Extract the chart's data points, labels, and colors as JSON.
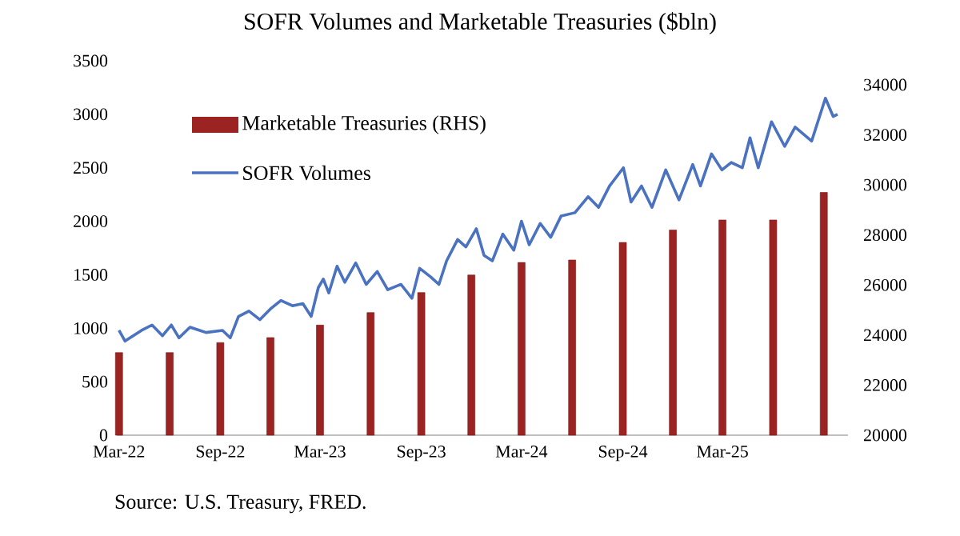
{
  "chart_data": {
    "type": "line",
    "title": "SOFR Volumes and Marketable Treasuries ($bln)",
    "annotations": [
      "Source: U.S. Treasury, FRED."
    ],
    "legend": "top left",
    "xlim": [
      "2022-02-25",
      "2025-10-15"
    ],
    "xticks": [
      {
        "value": "2022-03-01",
        "label": "Mar-22"
      },
      {
        "value": "2022-09-01",
        "label": "Sep-22"
      },
      {
        "value": "2023-03-01",
        "label": "Mar-23"
      },
      {
        "value": "2023-09-01",
        "label": "Sep-23"
      },
      {
        "value": "2024-03-01",
        "label": "Mar-24"
      },
      {
        "value": "2024-09-01",
        "label": "Sep-24"
      },
      {
        "value": "2025-03-01",
        "label": "Mar-25"
      }
    ],
    "ylim": [
      0,
      3500
    ],
    "yticks": [
      0,
      500,
      1000,
      1500,
      2000,
      2500,
      3000,
      3500
    ],
    "y2lim": [
      20000,
      34000
    ],
    "y2ticks": [
      20000,
      22000,
      24000,
      26000,
      28000,
      30000,
      32000,
      34000
    ],
    "series": [
      {
        "name": "Marketable Treasuries (RHS)",
        "type": "bar",
        "axis": "y2",
        "color": "#9b2423",
        "x": [
          "2022-03-01",
          "2022-06-01",
          "2022-09-01",
          "2022-12-01",
          "2023-03-01",
          "2023-06-01",
          "2023-09-01",
          "2023-12-01",
          "2024-03-01",
          "2024-06-01",
          "2024-09-01",
          "2024-12-01",
          "2025-03-01",
          "2025-06-01",
          "2025-09-01"
        ],
        "values": [
          23300,
          23300,
          23700,
          23900,
          24400,
          24900,
          25700,
          26400,
          26900,
          27000,
          27700,
          28200,
          28600,
          28600,
          29700
        ]
      },
      {
        "name": "SOFR Volumes",
        "color": "#4a72c0",
        "x": [
          "2022-03-01",
          "2022-03-12",
          "2022-04-11",
          "2022-04-30",
          "2022-05-19",
          "2022-06-04",
          "2022-06-18",
          "2022-07-08",
          "2022-08-06",
          "2022-09-05",
          "2022-09-19",
          "2022-10-04",
          "2022-10-23",
          "2022-11-12",
          "2022-12-01",
          "2022-12-20",
          "2023-01-10",
          "2023-01-29",
          "2023-02-13",
          "2023-02-26",
          "2023-03-07",
          "2023-03-17",
          "2023-04-01",
          "2023-04-15",
          "2023-05-05",
          "2023-05-24",
          "2023-06-13",
          "2023-07-02",
          "2023-07-26",
          "2023-08-15",
          "2023-08-29",
          "2023-09-18",
          "2023-10-03",
          "2023-10-17",
          "2023-11-06",
          "2023-11-21",
          "2023-12-10",
          "2023-12-24",
          "2024-01-08",
          "2024-01-27",
          "2024-02-16",
          "2024-03-01",
          "2024-03-15",
          "2024-04-04",
          "2024-04-23",
          "2024-05-12",
          "2024-06-06",
          "2024-06-30",
          "2024-07-19",
          "2024-08-08",
          "2024-09-02",
          "2024-09-16",
          "2024-10-05",
          "2024-10-24",
          "2024-11-18",
          "2024-12-12",
          "2025-01-06",
          "2025-01-20",
          "2025-02-09",
          "2025-02-28",
          "2025-03-17",
          "2025-04-06",
          "2025-04-20",
          "2025-05-05",
          "2025-05-29",
          "2025-06-22",
          "2025-07-11",
          "2025-08-10",
          "2025-09-04",
          "2025-09-18",
          "2025-09-26"
        ],
        "values": [
          980,
          880,
          980,
          1030,
          930,
          1030,
          910,
          1010,
          960,
          980,
          910,
          1110,
          1160,
          1080,
          1180,
          1260,
          1210,
          1230,
          1110,
          1380,
          1460,
          1330,
          1580,
          1430,
          1610,
          1410,
          1530,
          1360,
          1410,
          1280,
          1560,
          1480,
          1410,
          1630,
          1830,
          1760,
          1930,
          1680,
          1630,
          1880,
          1730,
          2000,
          1780,
          1980,
          1850,
          2050,
          2080,
          2230,
          2130,
          2330,
          2500,
          2180,
          2330,
          2130,
          2480,
          2200,
          2530,
          2330,
          2630,
          2480,
          2550,
          2500,
          2780,
          2500,
          2930,
          2700,
          2880,
          2750,
          3150,
          2980,
          3000
        ]
      }
    ]
  }
}
